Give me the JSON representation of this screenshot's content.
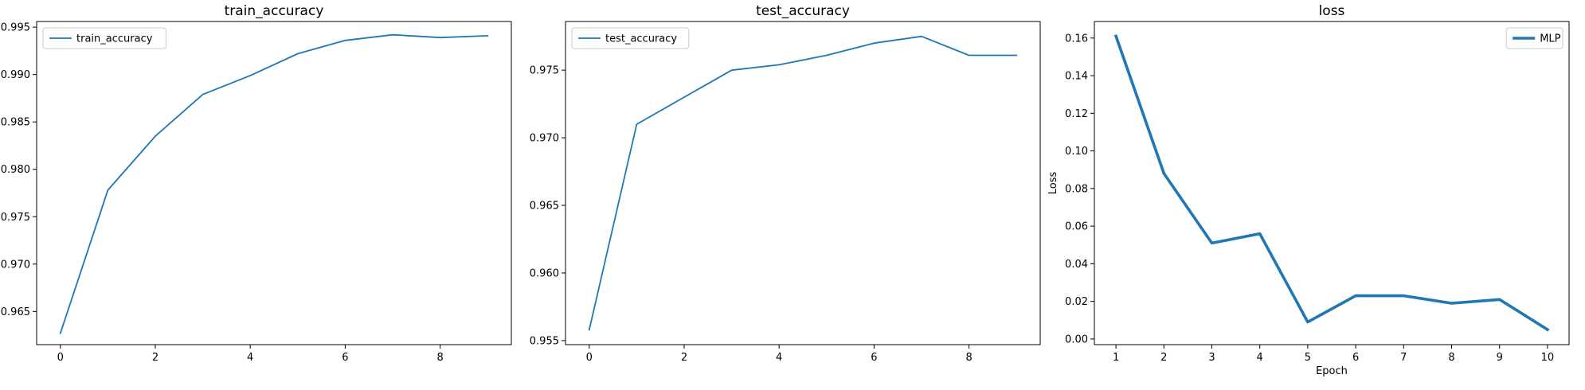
{
  "colors": {
    "series": "#1f77b4"
  },
  "chart_data": [
    {
      "type": "line",
      "title": "train_accuracy",
      "xlabel": "",
      "ylabel": "",
      "x": [
        0,
        1,
        2,
        3,
        4,
        5,
        6,
        7,
        8,
        9
      ],
      "xlim": [
        -0.5,
        9.5
      ],
      "ylim": [
        0.9615,
        0.9956
      ],
      "xticks": [
        0,
        2,
        4,
        6,
        8
      ],
      "xtick_labels": [
        "0",
        "2",
        "4",
        "6",
        "8"
      ],
      "yticks": [
        0.965,
        0.97,
        0.975,
        0.98,
        0.985,
        0.99,
        0.995
      ],
      "ytick_labels": [
        "0.965",
        "0.970",
        "0.975",
        "0.980",
        "0.985",
        "0.990",
        "0.995"
      ],
      "legend": "top-left",
      "grid": false,
      "series": [
        {
          "name": "train_accuracy",
          "values": [
            0.9627,
            0.9778,
            0.9835,
            0.9879,
            0.9899,
            0.9922,
            0.9936,
            0.9942,
            0.9939,
            0.9941
          ]
        }
      ]
    },
    {
      "type": "line",
      "title": "test_accuracy",
      "xlabel": "",
      "ylabel": "",
      "x": [
        0,
        1,
        2,
        3,
        4,
        5,
        6,
        7,
        8,
        9
      ],
      "xlim": [
        -0.5,
        9.5
      ],
      "ylim": [
        0.9547,
        0.9786
      ],
      "xticks": [
        0,
        2,
        4,
        6,
        8
      ],
      "xtick_labels": [
        "0",
        "2",
        "4",
        "6",
        "8"
      ],
      "yticks": [
        0.955,
        0.96,
        0.965,
        0.97,
        0.975
      ],
      "ytick_labels": [
        "0.955",
        "0.960",
        "0.965",
        "0.970",
        "0.975"
      ],
      "legend": "top-left",
      "grid": false,
      "series": [
        {
          "name": "test_accuracy",
          "values": [
            0.9558,
            0.971,
            0.973,
            0.975,
            0.9754,
            0.9761,
            0.977,
            0.9775,
            0.9761,
            0.9761
          ]
        }
      ]
    },
    {
      "type": "line",
      "title": "loss",
      "xlabel": "Epoch",
      "ylabel": "Loss",
      "x": [
        1,
        2,
        3,
        4,
        5,
        6,
        7,
        8,
        9,
        10
      ],
      "xlim": [
        0.55,
        10.45
      ],
      "ylim": [
        -0.003,
        0.1688
      ],
      "xticks": [
        1,
        2,
        3,
        4,
        5,
        6,
        7,
        8,
        9,
        10
      ],
      "xtick_labels": [
        "1",
        "2",
        "3",
        "4",
        "5",
        "6",
        "7",
        "8",
        "9",
        "10"
      ],
      "yticks": [
        0.0,
        0.02,
        0.04,
        0.06,
        0.08,
        0.1,
        0.12,
        0.14,
        0.16
      ],
      "ytick_labels": [
        "0.00",
        "0.02",
        "0.04",
        "0.06",
        "0.08",
        "0.10",
        "0.12",
        "0.14",
        "0.16"
      ],
      "legend": "top-right",
      "grid": false,
      "series": [
        {
          "name": "MLP",
          "values": [
            0.161,
            0.088,
            0.051,
            0.056,
            0.009,
            0.023,
            0.023,
            0.019,
            0.021,
            0.005
          ]
        }
      ]
    }
  ]
}
